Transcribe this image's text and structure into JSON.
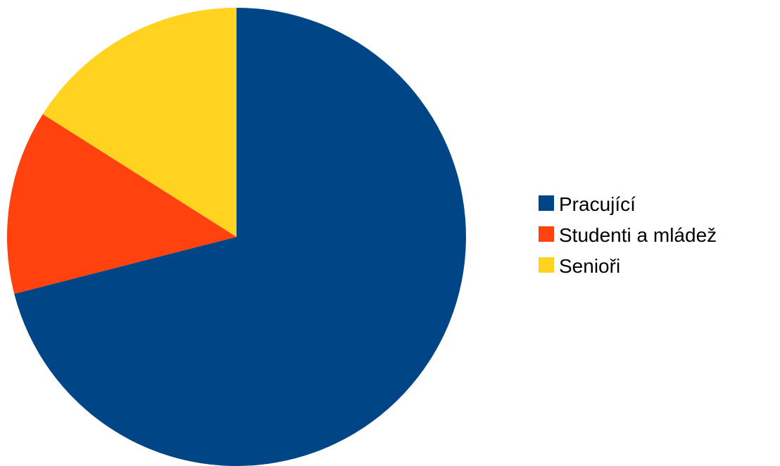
{
  "chart_data": {
    "type": "pie",
    "title": "",
    "legend_position": "right",
    "start_angle_deg": 0,
    "direction": "clockwise",
    "slices": [
      {
        "label": "Pracující",
        "value": 71,
        "color": "#004586"
      },
      {
        "label": "Studenti a mládež",
        "value": 13,
        "color": "#ff420e"
      },
      {
        "label": "Senioři",
        "value": 16,
        "color": "#ffd320"
      }
    ]
  }
}
